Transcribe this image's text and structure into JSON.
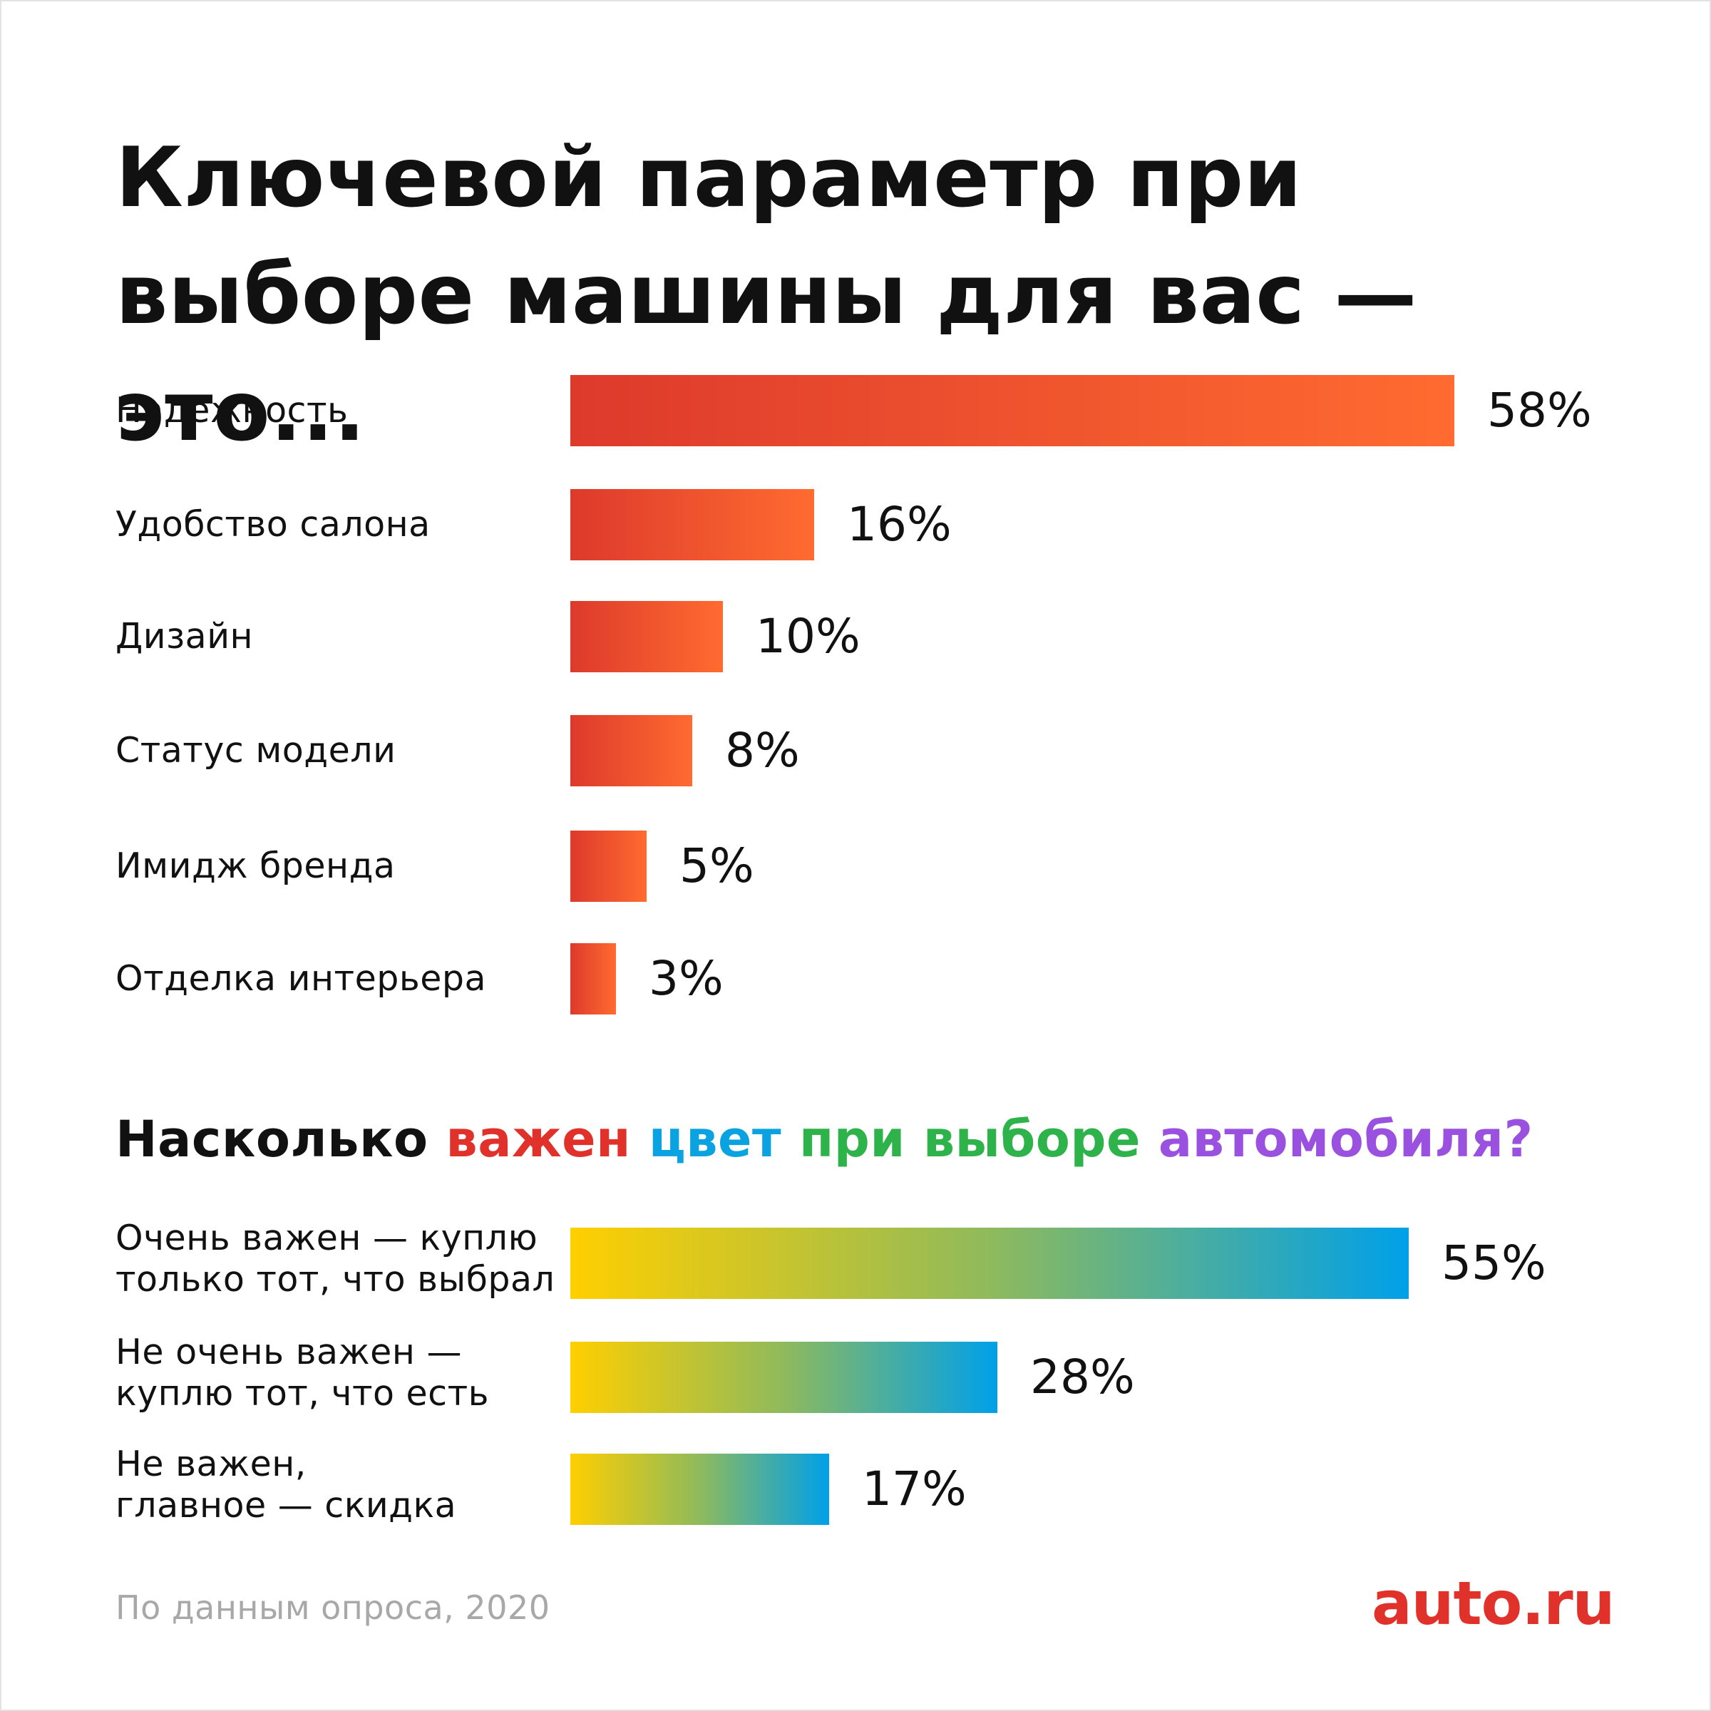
{
  "colors": {
    "warm_start": "#dd3a2c",
    "warm_end": "#ff6b30",
    "cool_start": "#ffcf00",
    "cool_end": "#00a0e9",
    "brand": "#e0312b"
  },
  "chart_data": [
    {
      "type": "bar",
      "orientation": "horizontal",
      "title": "Ключевой параметр при выборе машины для вас — это...",
      "categories": [
        "Надёжность",
        "Удобство салона",
        "Дизайн",
        "Статус модели",
        "Имидж бренда",
        "Отделка интерьера"
      ],
      "values": [
        58,
        16,
        10,
        8,
        5,
        3
      ],
      "value_labels": [
        "58%",
        "16%",
        "10%",
        "8%",
        "5%",
        "3%"
      ],
      "unit": "%",
      "xlim": [
        0,
        58
      ]
    },
    {
      "type": "bar",
      "orientation": "horizontal",
      "title_parts": [
        {
          "text": "Насколько ",
          "color": "#111111"
        },
        {
          "text": "важен ",
          "color": "#e0312b"
        },
        {
          "text": "цвет ",
          "color": "#0aa2e0"
        },
        {
          "text": "при выборе ",
          "color": "#2db34a"
        },
        {
          "text": "автомобиля?",
          "color": "#9b51e0"
        }
      ],
      "categories": [
        "Очень важен —  куплю\nтолько тот, что выбрал",
        "Не очень важен —\nкуплю тот, что есть",
        "Не важен,\nглавное — скидка"
      ],
      "values": [
        55,
        28,
        17
      ],
      "value_labels": [
        "55%",
        "28%",
        "17%"
      ],
      "unit": "%",
      "xlim": [
        0,
        58
      ]
    }
  ],
  "footer": {
    "source": "По данным опроса, 2020",
    "logo": "auto.ru"
  }
}
